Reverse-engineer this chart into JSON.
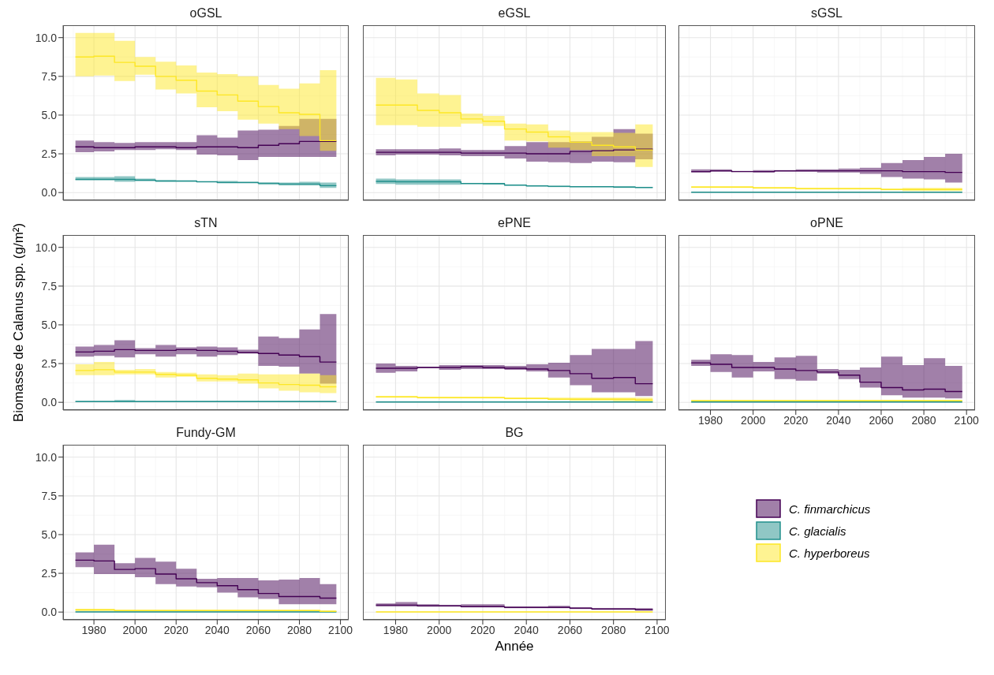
{
  "chart_data": [
    {
      "type": "step",
      "title": "oGSL",
      "x": [
        1971,
        1980,
        1990,
        2000,
        2010,
        2020,
        2030,
        2040,
        2050,
        2060,
        2070,
        2080,
        2090,
        2098
      ],
      "xlim": [
        1965,
        2104
      ],
      "xticks": [
        1980,
        2000,
        2020,
        2040,
        2060,
        2080,
        2100
      ],
      "ylim": [
        -0.5,
        10.8
      ],
      "yticks": [
        {
          "value": 0,
          "label": "0.0"
        },
        {
          "value": 2.5,
          "label": "2.5"
        },
        {
          "value": 5,
          "label": "5.0"
        },
        {
          "value": 7.5,
          "label": "7.5"
        },
        {
          "value": 10,
          "label": "10.0"
        }
      ],
      "tick_labels": "y",
      "grid": true,
      "series": [
        {
          "color": "#440154",
          "values": [
            2.95,
            2.9,
            2.9,
            2.95,
            2.95,
            2.9,
            2.95,
            2.95,
            2.9,
            3.05,
            3.15,
            3.3,
            3.3,
            3.3
          ],
          "lower": [
            2.6,
            2.65,
            2.75,
            2.75,
            2.8,
            2.75,
            2.45,
            2.4,
            2.1,
            2.3,
            2.3,
            2.3,
            2.3,
            2.3
          ],
          "upper": [
            3.35,
            3.25,
            3.2,
            3.25,
            3.25,
            3.25,
            3.7,
            3.55,
            4.0,
            4.05,
            4.3,
            4.75,
            4.75,
            4.75
          ]
        },
        {
          "color": "#21908c",
          "values": [
            0.85,
            0.85,
            0.85,
            0.8,
            0.75,
            0.75,
            0.7,
            0.65,
            0.65,
            0.6,
            0.55,
            0.55,
            0.45,
            0.45
          ],
          "lower": [
            0.8,
            0.8,
            0.7,
            0.75,
            0.7,
            0.7,
            0.68,
            0.6,
            0.6,
            0.5,
            0.45,
            0.45,
            0.3,
            0.3
          ],
          "upper": [
            1.0,
            1.0,
            1.05,
            0.9,
            0.8,
            0.75,
            0.72,
            0.75,
            0.7,
            0.65,
            0.65,
            0.7,
            0.65,
            0.65
          ]
        },
        {
          "color": "#fde725",
          "values": [
            8.75,
            8.8,
            8.4,
            8.15,
            7.5,
            7.25,
            6.55,
            6.3,
            5.9,
            5.55,
            5.15,
            5.05,
            3.35,
            3.35
          ],
          "lower": [
            7.5,
            7.55,
            7.2,
            7.6,
            6.65,
            6.4,
            5.5,
            5.25,
            4.7,
            4.45,
            4.1,
            3.65,
            2.7,
            2.7
          ],
          "upper": [
            10.3,
            10.3,
            9.8,
            8.75,
            8.45,
            8.2,
            7.75,
            7.65,
            7.5,
            6.95,
            6.7,
            7.05,
            7.9,
            7.9
          ]
        }
      ]
    },
    {
      "type": "step",
      "title": "eGSL",
      "x": [
        1971,
        1980,
        1990,
        2000,
        2010,
        2020,
        2030,
        2040,
        2050,
        2060,
        2070,
        2080,
        2090,
        2098
      ],
      "xlim": [
        1965,
        2104
      ],
      "xticks": [
        1980,
        2000,
        2020,
        2040,
        2060,
        2080,
        2100
      ],
      "ylim": [
        -0.5,
        10.8
      ],
      "yticks": [
        0,
        2.5,
        5,
        7.5,
        10
      ],
      "tick_labels": false,
      "grid": true,
      "series": [
        {
          "color": "#440154",
          "values": [
            2.6,
            2.6,
            2.6,
            2.6,
            2.55,
            2.55,
            2.55,
            2.5,
            2.5,
            2.65,
            2.7,
            2.75,
            2.8,
            2.8
          ],
          "lower": [
            2.4,
            2.45,
            2.45,
            2.4,
            2.35,
            2.35,
            2.2,
            2.0,
            1.95,
            1.9,
            2.0,
            1.95,
            2.15,
            2.15
          ],
          "upper": [
            2.8,
            2.8,
            2.8,
            2.85,
            2.75,
            2.75,
            3.0,
            3.25,
            3.25,
            3.3,
            3.6,
            4.1,
            3.8,
            3.8
          ]
        },
        {
          "color": "#21908c",
          "values": [
            0.72,
            0.7,
            0.7,
            0.7,
            0.58,
            0.58,
            0.48,
            0.43,
            0.4,
            0.38,
            0.38,
            0.35,
            0.33,
            0.33
          ],
          "lower": [
            0.55,
            0.5,
            0.5,
            0.5,
            0.55,
            0.5,
            0.45,
            0.4,
            0.35,
            0.35,
            0.35,
            0.3,
            0.3,
            0.3
          ],
          "upper": [
            0.9,
            0.85,
            0.85,
            0.85,
            0.6,
            0.6,
            0.5,
            0.45,
            0.4,
            0.4,
            0.4,
            0.4,
            0.35,
            0.35
          ]
        },
        {
          "color": "#fde725",
          "values": [
            5.65,
            5.65,
            5.3,
            5.15,
            4.75,
            4.6,
            4.1,
            3.9,
            3.6,
            3.25,
            3.05,
            2.95,
            2.75,
            2.75
          ],
          "lower": [
            4.35,
            4.35,
            4.25,
            4.25,
            4.45,
            4.3,
            3.35,
            3.3,
            2.9,
            2.75,
            2.35,
            2.35,
            1.65,
            1.65
          ],
          "upper": [
            7.4,
            7.3,
            6.4,
            6.3,
            5.1,
            4.95,
            4.45,
            4.4,
            4.0,
            3.9,
            3.9,
            3.85,
            4.4,
            4.4
          ]
        }
      ]
    },
    {
      "type": "step",
      "title": "sGSL",
      "x": [
        1971,
        1980,
        1990,
        2000,
        2010,
        2020,
        2030,
        2040,
        2050,
        2060,
        2070,
        2080,
        2090,
        2098
      ],
      "xlim": [
        1965,
        2104
      ],
      "xticks": [
        1980,
        2000,
        2020,
        2040,
        2060,
        2080,
        2100
      ],
      "ylim": [
        -0.5,
        10.8
      ],
      "yticks": [
        0,
        2.5,
        5,
        7.5,
        10
      ],
      "tick_labels": false,
      "grid": true,
      "series": [
        {
          "color": "#440154",
          "values": [
            1.35,
            1.4,
            1.35,
            1.35,
            1.4,
            1.4,
            1.4,
            1.4,
            1.4,
            1.4,
            1.35,
            1.35,
            1.3,
            1.3
          ],
          "lower": [
            1.3,
            1.35,
            1.35,
            1.3,
            1.35,
            1.35,
            1.3,
            1.3,
            1.2,
            1.0,
            0.9,
            0.85,
            0.65,
            0.65
          ],
          "upper": [
            1.5,
            1.5,
            1.4,
            1.45,
            1.45,
            1.5,
            1.5,
            1.55,
            1.6,
            1.9,
            2.1,
            2.3,
            2.5,
            2.5
          ]
        },
        {
          "color": "#21908c",
          "values": [
            0.02,
            0.02,
            0.02,
            0.02,
            0.02,
            0.02,
            0.02,
            0.02,
            0.02,
            0.02,
            0.02,
            0.02,
            0.02,
            0.02
          ],
          "lower": [
            0,
            0,
            0,
            0,
            0,
            0,
            0,
            0,
            0,
            0,
            0,
            0,
            0,
            0
          ],
          "upper": [
            0.04,
            0.04,
            0.04,
            0.04,
            0.04,
            0.04,
            0.04,
            0.04,
            0.04,
            0.04,
            0.04,
            0.04,
            0.04,
            0.04
          ]
        },
        {
          "color": "#fde725",
          "values": [
            0.35,
            0.35,
            0.35,
            0.3,
            0.3,
            0.25,
            0.25,
            0.25,
            0.25,
            0.2,
            0.2,
            0.2,
            0.2,
            0.2
          ],
          "lower": [
            0.3,
            0.3,
            0.3,
            0.25,
            0.25,
            0.2,
            0.2,
            0.2,
            0.2,
            0.15,
            0.1,
            0.1,
            0.1,
            0.1
          ],
          "upper": [
            0.4,
            0.4,
            0.4,
            0.35,
            0.35,
            0.3,
            0.3,
            0.3,
            0.3,
            0.25,
            0.3,
            0.3,
            0.3,
            0.3
          ]
        }
      ]
    },
    {
      "type": "step",
      "title": "sTN",
      "ylabel": "Biomasse de Calanus spp. (g/m²)",
      "x": [
        1971,
        1980,
        1990,
        2000,
        2010,
        2020,
        2030,
        2040,
        2050,
        2060,
        2070,
        2080,
        2090,
        2098
      ],
      "xlim": [
        1965,
        2104
      ],
      "xticks": [
        1980,
        2000,
        2020,
        2040,
        2060,
        2080,
        2100
      ],
      "ylim": [
        -0.5,
        10.8
      ],
      "yticks": [
        {
          "value": 0,
          "label": "0.0"
        },
        {
          "value": 2.5,
          "label": "2.5"
        },
        {
          "value": 5,
          "label": "5.0"
        },
        {
          "value": 7.5,
          "label": "7.5"
        },
        {
          "value": 10,
          "label": "10.0"
        }
      ],
      "tick_labels": "y",
      "grid": true,
      "series": [
        {
          "color": "#440154",
          "values": [
            3.25,
            3.3,
            3.4,
            3.35,
            3.35,
            3.4,
            3.35,
            3.3,
            3.2,
            3.15,
            3.05,
            2.95,
            2.6,
            2.6
          ],
          "lower": [
            2.95,
            3.0,
            2.9,
            3.1,
            2.95,
            3.1,
            2.95,
            3.05,
            3.15,
            2.35,
            2.3,
            1.85,
            1.2,
            1.2
          ],
          "upper": [
            3.6,
            3.7,
            4.0,
            3.5,
            3.7,
            3.55,
            3.6,
            3.55,
            3.4,
            4.25,
            4.15,
            4.7,
            5.7,
            5.7
          ]
        },
        {
          "color": "#21908c",
          "values": [
            0.05,
            0.05,
            0.05,
            0.05,
            0.05,
            0.05,
            0.05,
            0.05,
            0.05,
            0.05,
            0.05,
            0.05,
            0.05,
            0.05
          ],
          "lower": [
            0.02,
            0.02,
            0.02,
            0.02,
            0.02,
            0.02,
            0.02,
            0.02,
            0.02,
            0.02,
            0.02,
            0.02,
            0.02,
            0.02
          ],
          "upper": [
            0.08,
            0.08,
            0.15,
            0.08,
            0.08,
            0.08,
            0.08,
            0.08,
            0.08,
            0.08,
            0.08,
            0.08,
            0.08,
            0.08
          ]
        },
        {
          "color": "#fde725",
          "values": [
            2.05,
            2.1,
            1.95,
            1.95,
            1.8,
            1.75,
            1.55,
            1.5,
            1.45,
            1.25,
            1.15,
            1.1,
            1.0,
            1.0
          ],
          "lower": [
            1.75,
            1.75,
            1.8,
            1.8,
            1.6,
            1.65,
            1.35,
            1.35,
            1.2,
            0.9,
            0.75,
            0.65,
            0.6,
            0.6
          ],
          "upper": [
            2.45,
            2.6,
            2.1,
            2.15,
            1.95,
            1.9,
            1.8,
            1.75,
            1.85,
            1.8,
            1.8,
            1.85,
            1.75,
            1.75
          ]
        }
      ]
    },
    {
      "type": "step",
      "title": "ePNE",
      "x": [
        1971,
        1980,
        1990,
        2000,
        2010,
        2020,
        2030,
        2040,
        2050,
        2060,
        2070,
        2080,
        2090,
        2098
      ],
      "xlim": [
        1965,
        2104
      ],
      "xticks": [
        1980,
        2000,
        2020,
        2040,
        2060,
        2080,
        2100
      ],
      "ylim": [
        -0.5,
        10.8
      ],
      "yticks": [
        0,
        2.5,
        5,
        7.5,
        10
      ],
      "tick_labels": false,
      "grid": true,
      "series": [
        {
          "color": "#440154",
          "values": [
            2.2,
            2.2,
            2.25,
            2.25,
            2.3,
            2.25,
            2.2,
            2.15,
            2.05,
            1.85,
            1.55,
            1.6,
            1.2,
            1.2
          ],
          "lower": [
            1.9,
            2.0,
            2.2,
            2.1,
            2.15,
            2.15,
            2.1,
            2.0,
            1.6,
            1.1,
            0.65,
            0.65,
            0.4,
            0.4
          ],
          "upper": [
            2.5,
            2.35,
            2.3,
            2.4,
            2.4,
            2.4,
            2.35,
            2.45,
            2.55,
            3.05,
            3.45,
            3.45,
            3.95,
            3.95
          ]
        },
        {
          "color": "#21908c",
          "values": [
            0.02,
            0.02,
            0.02,
            0.02,
            0.02,
            0.02,
            0.02,
            0.02,
            0.02,
            0.02,
            0.02,
            0.02,
            0.02,
            0.02
          ],
          "lower": [
            0,
            0,
            0,
            0,
            0,
            0,
            0,
            0,
            0,
            0,
            0,
            0,
            0,
            0
          ],
          "upper": [
            0.04,
            0.04,
            0.04,
            0.04,
            0.04,
            0.04,
            0.04,
            0.04,
            0.04,
            0.04,
            0.04,
            0.04,
            0.04,
            0.04
          ]
        },
        {
          "color": "#fde725",
          "values": [
            0.35,
            0.35,
            0.3,
            0.3,
            0.3,
            0.3,
            0.25,
            0.25,
            0.2,
            0.2,
            0.2,
            0.2,
            0.15,
            0.15
          ],
          "lower": [
            0.3,
            0.3,
            0.25,
            0.25,
            0.25,
            0.25,
            0.2,
            0.2,
            0.15,
            0.1,
            0.1,
            0.05,
            0.05,
            0.05
          ],
          "upper": [
            0.4,
            0.4,
            0.35,
            0.35,
            0.35,
            0.35,
            0.3,
            0.3,
            0.3,
            0.3,
            0.3,
            0.3,
            0.3,
            0.3
          ]
        }
      ]
    },
    {
      "type": "step",
      "title": "oPNE",
      "x": [
        1971,
        1980,
        1990,
        2000,
        2010,
        2020,
        2030,
        2040,
        2050,
        2060,
        2070,
        2080,
        2090,
        2098
      ],
      "xlim": [
        1965,
        2104
      ],
      "xticks": [
        1980,
        2000,
        2020,
        2040,
        2060,
        2080,
        2100
      ],
      "ylim": [
        -0.5,
        10.8
      ],
      "yticks": [
        0,
        2.5,
        5,
        7.5,
        10
      ],
      "tick_labels": "x",
      "grid": true,
      "series": [
        {
          "color": "#440154",
          "values": [
            2.55,
            2.45,
            2.25,
            2.25,
            2.15,
            2.05,
            1.95,
            1.75,
            1.3,
            0.95,
            0.8,
            0.85,
            0.7,
            0.7
          ],
          "lower": [
            2.35,
            1.95,
            1.6,
            2.0,
            1.5,
            1.4,
            1.85,
            1.5,
            0.95,
            0.45,
            0.3,
            0.3,
            0.25,
            0.25
          ],
          "upper": [
            2.75,
            3.1,
            3.05,
            2.6,
            2.9,
            3.0,
            2.15,
            2.1,
            2.25,
            2.95,
            2.4,
            2.85,
            2.35,
            2.35
          ]
        },
        {
          "color": "#21908c",
          "values": [
            0.02,
            0.02,
            0.02,
            0.02,
            0.02,
            0.02,
            0.02,
            0.02,
            0.02,
            0.02,
            0.02,
            0.02,
            0.02,
            0.02
          ],
          "lower": [
            0,
            0,
            0,
            0,
            0,
            0,
            0,
            0,
            0,
            0,
            0,
            0,
            0,
            0
          ],
          "upper": [
            0.04,
            0.04,
            0.04,
            0.04,
            0.04,
            0.04,
            0.04,
            0.04,
            0.04,
            0.04,
            0.04,
            0.04,
            0.04,
            0.04
          ]
        },
        {
          "color": "#fde725",
          "values": [
            0.1,
            0.1,
            0.1,
            0.1,
            0.1,
            0.1,
            0.1,
            0.1,
            0.1,
            0.1,
            0.1,
            0.1,
            0.1,
            0.1
          ],
          "lower": [
            0.05,
            0.05,
            0.05,
            0.05,
            0.05,
            0.05,
            0.05,
            0.05,
            0.05,
            0.05,
            0.05,
            0.05,
            0.05,
            0.05
          ],
          "upper": [
            0.15,
            0.15,
            0.15,
            0.15,
            0.15,
            0.15,
            0.15,
            0.15,
            0.15,
            0.15,
            0.15,
            0.15,
            0.15,
            0.15
          ]
        }
      ]
    },
    {
      "type": "step",
      "title": "Fundy-GM",
      "x": [
        1971,
        1980,
        1990,
        2000,
        2010,
        2020,
        2030,
        2040,
        2050,
        2060,
        2070,
        2080,
        2090,
        2098
      ],
      "xlim": [
        1965,
        2104
      ],
      "xticks": [
        1980,
        2000,
        2020,
        2040,
        2060,
        2080,
        2100
      ],
      "ylim": [
        -0.5,
        10.8
      ],
      "yticks": [
        {
          "value": 0,
          "label": "0.0"
        },
        {
          "value": 2.5,
          "label": "2.5"
        },
        {
          "value": 5,
          "label": "5.0"
        },
        {
          "value": 7.5,
          "label": "7.5"
        },
        {
          "value": 10,
          "label": "10.0"
        }
      ],
      "grid": true,
      "series": [
        {
          "color": "#440154",
          "values": [
            3.35,
            3.3,
            2.75,
            2.8,
            2.45,
            2.15,
            1.9,
            1.7,
            1.45,
            1.2,
            1.0,
            1.0,
            0.9,
            0.9
          ],
          "lower": [
            2.9,
            2.45,
            2.45,
            2.25,
            1.8,
            1.65,
            1.6,
            1.25,
            0.95,
            0.85,
            0.5,
            0.5,
            0.5,
            0.5
          ],
          "upper": [
            3.85,
            4.35,
            3.15,
            3.5,
            3.25,
            2.8,
            2.15,
            2.2,
            2.2,
            2.05,
            2.1,
            2.2,
            1.8,
            1.8
          ]
        },
        {
          "color": "#21908c",
          "values": [
            0.01,
            0.01,
            0.01,
            0.01,
            0.01,
            0.01,
            0.01,
            0.01,
            0.01,
            0.01,
            0.01,
            0.01,
            0.01,
            0.01
          ],
          "lower": [
            0,
            0,
            0,
            0,
            0,
            0,
            0,
            0,
            0,
            0,
            0,
            0,
            0,
            0
          ],
          "upper": [
            0.02,
            0.02,
            0.02,
            0.02,
            0.02,
            0.02,
            0.02,
            0.02,
            0.02,
            0.02,
            0.02,
            0.02,
            0.02,
            0.02
          ]
        },
        {
          "color": "#fde725",
          "values": [
            0.15,
            0.15,
            0.1,
            0.1,
            0.1,
            0.1,
            0.1,
            0.1,
            0.1,
            0.1,
            0.1,
            0.1,
            0.05,
            0.05
          ],
          "lower": [
            0.05,
            0.05,
            0.05,
            0.05,
            0.05,
            0.05,
            0.05,
            0.05,
            0.05,
            0.05,
            0.05,
            0.05,
            0,
            0
          ],
          "upper": [
            0.2,
            0.2,
            0.15,
            0.15,
            0.15,
            0.15,
            0.15,
            0.15,
            0.15,
            0.15,
            0.15,
            0.15,
            0.1,
            0.1
          ]
        }
      ]
    },
    {
      "type": "step",
      "title": "BG",
      "xlabel": "Année",
      "legend": "right",
      "x": [
        1971,
        1980,
        1990,
        2000,
        2010,
        2020,
        2030,
        2040,
        2050,
        2060,
        2070,
        2080,
        2090,
        2098
      ],
      "xlim": [
        1965,
        2104
      ],
      "xticks": [
        1980,
        2000,
        2020,
        2040,
        2060,
        2080,
        2100
      ],
      "ylim": [
        -0.5,
        10.8
      ],
      "yticks": [
        0,
        2.5,
        5,
        7.5,
        10
      ],
      "tick_labels": "x",
      "grid": true,
      "series": [
        {
          "name": "C. finmarchicus",
          "color": "#440154",
          "values": [
            0.45,
            0.45,
            0.4,
            0.4,
            0.35,
            0.35,
            0.3,
            0.3,
            0.3,
            0.25,
            0.2,
            0.2,
            0.15,
            0.15
          ],
          "lower": [
            0.35,
            0.35,
            0.35,
            0.35,
            0.3,
            0.3,
            0.25,
            0.25,
            0.25,
            0.2,
            0.15,
            0.15,
            0.1,
            0.1
          ],
          "upper": [
            0.55,
            0.65,
            0.5,
            0.45,
            0.5,
            0.5,
            0.35,
            0.35,
            0.4,
            0.3,
            0.25,
            0.25,
            0.25,
            0.25
          ]
        },
        {
          "name": "C. glacialis",
          "color": "#21908c",
          "values": [
            null,
            null,
            null,
            null,
            null,
            null,
            null,
            null,
            null,
            null,
            null,
            null,
            null,
            null
          ],
          "lower": [
            null,
            null,
            null,
            null,
            null,
            null,
            null,
            null,
            null,
            null,
            null,
            null,
            null,
            null
          ],
          "upper": [
            null,
            null,
            null,
            null,
            null,
            null,
            null,
            null,
            null,
            null,
            null,
            null,
            null,
            null
          ]
        },
        {
          "name": "C. hyperboreus",
          "color": "#fde725",
          "values": [
            0.01,
            0.01,
            0.01,
            0.01,
            0.01,
            0.01,
            0.01,
            0.01,
            0.01,
            0.01,
            0.01,
            0.01,
            0.01,
            0.01
          ],
          "lower": [
            0,
            0,
            0,
            0,
            0,
            0,
            0,
            0,
            0,
            0,
            0,
            0,
            0,
            0
          ],
          "upper": [
            0.02,
            0.02,
            0.02,
            0.02,
            0.02,
            0.02,
            0.02,
            0.02,
            0.02,
            0.02,
            0.02,
            0.02,
            0.02,
            0.02
          ]
        }
      ]
    }
  ]
}
